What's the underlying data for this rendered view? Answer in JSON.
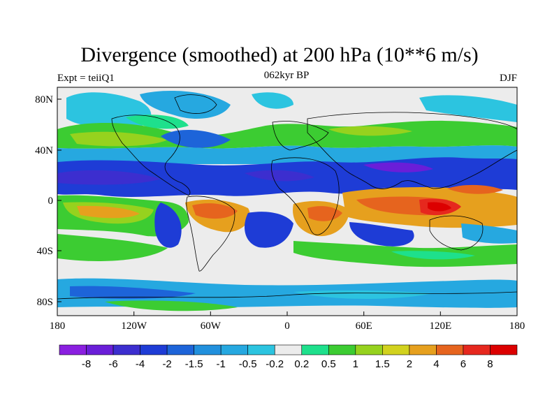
{
  "title": "Divergence (smoothed) at 200 hPa (10**6 m/s)",
  "subtitle_left": "Expt = teiiQ1",
  "subtitle_center": "062kyr BP",
  "subtitle_right": "DJF",
  "lon_ticks": [
    "180",
    "120W",
    "60W",
    "0",
    "60E",
    "120E",
    "180"
  ],
  "lat_ticks": [
    "80N",
    "40N",
    "0",
    "40S",
    "80S"
  ],
  "colorbar": {
    "labels": [
      "-8",
      "-6",
      "-4",
      "-2",
      "-1.5",
      "-1",
      "-0.5",
      "-0.2",
      "0.2",
      "0.5",
      "1",
      "1.5",
      "2",
      "4",
      "6",
      "8"
    ],
    "colors": [
      "#8a1fe0",
      "#6a1ed8",
      "#3c2ecf",
      "#1e3cd6",
      "#1d64d9",
      "#2190dd",
      "#26a8e0",
      "#2cc4e0",
      "#ececec",
      "#1ee08c",
      "#3ccc32",
      "#96d21e",
      "#d2d21e",
      "#e6a01e",
      "#e6641e",
      "#e6281e",
      "#dc0000"
    ]
  }
}
